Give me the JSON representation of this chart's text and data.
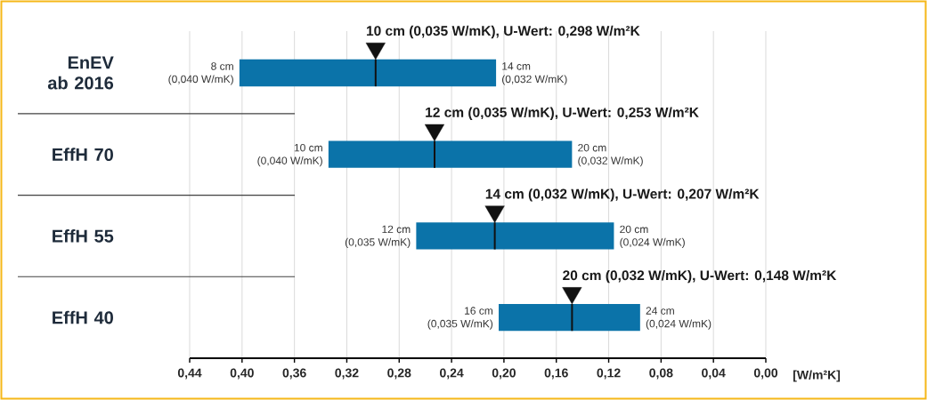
{
  "chart_data": {
    "type": "bar",
    "orientation": "horizontal",
    "categories": [
      "EnEV ab 2016",
      "EffH 70",
      "EffH 55",
      "EffH 40"
    ],
    "series": [
      {
        "color": "#0b73a9",
        "base": [
          0.206,
          0.148,
          0.116,
          0.096
        ],
        "values": [
          0.196,
          0.186,
          0.151,
          0.108
        ]
      },
      {
        "type": "scatter",
        "color": "#111111",
        "marker": "triangle",
        "x": [
          "EnEV ab 2016",
          "EffH 70",
          "EffH 55",
          "EffH 40"
        ],
        "values": [
          0.298,
          0.253,
          0.207,
          0.148
        ]
      }
    ],
    "xlim": [
      0.44,
      0.0
    ],
    "xticks": [
      {
        "value": 0.44,
        "label": "0,44"
      },
      {
        "value": 0.4,
        "label": "0,40"
      },
      {
        "value": 0.36,
        "label": "0,36"
      },
      {
        "value": 0.32,
        "label": "0,32"
      },
      {
        "value": 0.28,
        "label": "0,28"
      },
      {
        "value": 0.24,
        "label": "0,24"
      },
      {
        "value": 0.2,
        "label": "0,20"
      },
      {
        "value": 0.16,
        "label": "0,16"
      },
      {
        "value": 0.12,
        "label": "0,12"
      },
      {
        "value": 0.08,
        "label": "0,08"
      },
      {
        "value": 0.04,
        "label": "0,04"
      },
      {
        "value": 0.0,
        "label": "0,00"
      }
    ],
    "xlabel": "[W/m²K]",
    "grid": "x",
    "annotations": [
      "10 cm (0,035 W/mK), U-Wert: 0,298 W/m²K",
      {
        "text": "8 cm",
        "x": 0.402,
        "y": "EnEV ab 2016"
      },
      {
        "text": "(0,040 W/mK)",
        "x": 0.402,
        "y": "EnEV ab 2016"
      },
      {
        "text": "14 cm",
        "x": 0.206,
        "y": "EnEV ab 2016"
      },
      {
        "text": "(0,032 W/mK)",
        "x": 0.206,
        "y": "EnEV ab 2016"
      },
      "12 cm (0,035 W/mK), U-Wert: 0,253 W/m²K",
      {
        "text": "10 cm",
        "x": 0.334,
        "y": "EffH 70"
      },
      {
        "text": "(0,040 W/mK)",
        "x": 0.334,
        "y": "EffH 70"
      },
      {
        "text": "20 cm",
        "x": 0.148,
        "y": "EffH 70"
      },
      {
        "text": "(0,032 W/mK)",
        "x": 0.148,
        "y": "EffH 70"
      },
      "14 cm (0,032 W/mK), U-Wert: 0,207 W/m²K",
      {
        "text": "12 cm",
        "x": 0.267,
        "y": "EffH 55"
      },
      {
        "text": "(0,035 W/mK)",
        "x": 0.267,
        "y": "EffH 55"
      },
      {
        "text": "20 cm",
        "x": 0.116,
        "y": "EffH 55"
      },
      {
        "text": "(0,024 W/mK)",
        "x": 0.116,
        "y": "EffH 55"
      },
      "20 cm (0,032 W/mK), U-Wert: 0,148 W/m²K",
      {
        "text": "16 cm",
        "x": 0.204,
        "y": "EffH 40"
      },
      {
        "text": "(0,035 W/mK)",
        "x": 0.204,
        "y": "EffH 40"
      },
      {
        "text": "24 cm",
        "x": 0.096,
        "y": "EffH 40"
      },
      {
        "text": "(0,024 W/mK)",
        "x": 0.096,
        "y": "EffH 40"
      }
    ]
  }
}
